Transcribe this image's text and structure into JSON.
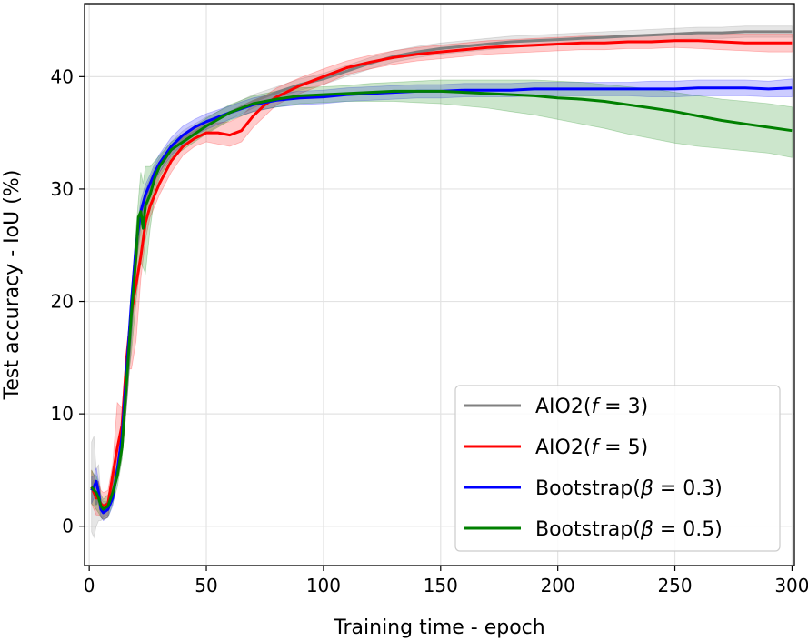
{
  "chart_data": {
    "type": "line",
    "title": "",
    "xlabel": "Training time - epoch",
    "ylabel": "Test accuracy - IoU (%)",
    "xlim": [
      -2,
      301
    ],
    "ylim": [
      -3.5,
      46.5
    ],
    "xticks": [
      0,
      50,
      100,
      150,
      200,
      250,
      300
    ],
    "yticks": [
      0,
      10,
      20,
      30,
      40
    ],
    "grid": true,
    "legend_position": "lower-right",
    "series": [
      {
        "name": "AIO2(f = 3)",
        "legend_prefix": "AIO2(",
        "legend_var": "f",
        "legend_suffix": " = 3)",
        "color": "#808080",
        "x": [
          1,
          2,
          3,
          4,
          5,
          6,
          8,
          10,
          12,
          14,
          16,
          18,
          20,
          22,
          25,
          28,
          30,
          35,
          40,
          50,
          60,
          70,
          80,
          90,
          100,
          110,
          120,
          130,
          140,
          150,
          160,
          170,
          180,
          190,
          200,
          210,
          220,
          230,
          240,
          250,
          260,
          270,
          280,
          290,
          300
        ],
        "y": [
          3.2,
          4.0,
          2.0,
          3.5,
          1.5,
          1.4,
          1.6,
          4.0,
          5.0,
          7.0,
          12.0,
          18.0,
          24.0,
          27.5,
          29.5,
          31.0,
          32.0,
          33.5,
          34.5,
          35.7,
          36.8,
          37.8,
          38.6,
          39.3,
          39.8,
          40.5,
          41.2,
          41.8,
          42.2,
          42.5,
          42.7,
          42.9,
          43.1,
          43.2,
          43.3,
          43.4,
          43.5,
          43.6,
          43.7,
          43.8,
          43.9,
          43.9,
          44.0,
          44.0,
          44.0
        ],
        "lower": [
          -0.5,
          -1.0,
          0.0,
          0.5,
          0.5,
          0.8,
          1.0,
          3.0,
          4.0,
          6.0,
          11.0,
          17.0,
          23.0,
          26.5,
          28.5,
          30.0,
          31.2,
          32.8,
          33.8,
          35.0,
          36.2,
          37.2,
          38.1,
          38.8,
          39.3,
          40.0,
          40.7,
          41.3,
          41.7,
          42.0,
          42.2,
          42.4,
          42.6,
          42.7,
          42.8,
          42.9,
          43.0,
          43.1,
          43.2,
          43.3,
          43.4,
          43.4,
          43.5,
          43.5,
          43.5
        ],
        "upper": [
          7.5,
          8.0,
          5.0,
          5.5,
          2.5,
          2.2,
          2.2,
          5.0,
          6.0,
          8.0,
          13.0,
          19.0,
          25.0,
          28.5,
          30.5,
          32.0,
          32.8,
          34.2,
          35.2,
          36.4,
          37.4,
          38.4,
          39.1,
          39.8,
          40.3,
          41.0,
          41.7,
          42.3,
          42.7,
          43.0,
          43.2,
          43.4,
          43.6,
          43.7,
          43.8,
          43.9,
          44.0,
          44.1,
          44.2,
          44.3,
          44.4,
          44.4,
          44.5,
          44.5,
          44.5
        ]
      },
      {
        "name": "AIO2(f = 5)",
        "legend_prefix": "AIO2(",
        "legend_var": "f",
        "legend_suffix": " = 5)",
        "color": "#ff0000",
        "x": [
          1,
          2,
          3,
          4,
          5,
          6,
          8,
          10,
          12,
          14,
          16,
          18,
          20,
          22,
          24,
          26,
          28,
          30,
          35,
          40,
          45,
          50,
          55,
          60,
          65,
          70,
          75,
          80,
          90,
          100,
          110,
          120,
          130,
          140,
          150,
          160,
          170,
          180,
          190,
          200,
          210,
          220,
          230,
          240,
          250,
          260,
          270,
          280,
          290,
          300
        ],
        "y": [
          3.5,
          3.0,
          2.5,
          2.5,
          2.0,
          1.8,
          2.0,
          4.5,
          7.0,
          9.0,
          15.0,
          19.0,
          21.5,
          24.0,
          27.0,
          28.5,
          29.5,
          30.5,
          32.5,
          33.8,
          34.5,
          35.0,
          35.0,
          34.8,
          35.2,
          36.5,
          37.5,
          38.2,
          39.2,
          40.0,
          40.8,
          41.3,
          41.7,
          42.0,
          42.2,
          42.4,
          42.6,
          42.7,
          42.8,
          42.9,
          43.0,
          43.0,
          43.1,
          43.1,
          43.2,
          43.2,
          43.1,
          43.0,
          43.0,
          43.0
        ],
        "lower": [
          2.0,
          1.5,
          1.0,
          1.0,
          0.8,
          0.6,
          0.8,
          3.5,
          6.0,
          8.0,
          14.0,
          14.0,
          16.5,
          22.0,
          25.5,
          27.5,
          28.5,
          29.5,
          31.5,
          33.0,
          33.8,
          34.2,
          34.0,
          33.8,
          34.2,
          35.5,
          36.5,
          37.5,
          38.5,
          39.3,
          40.2,
          40.7,
          41.1,
          41.4,
          41.6,
          41.8,
          42.0,
          42.1,
          42.2,
          42.3,
          42.4,
          42.4,
          42.5,
          42.5,
          42.6,
          42.5,
          42.4,
          42.3,
          42.2,
          42.2
        ],
        "upper": [
          5.0,
          4.5,
          4.0,
          4.0,
          3.2,
          3.0,
          3.2,
          5.5,
          11.0,
          10.5,
          16.0,
          20.0,
          25.0,
          26.0,
          28.5,
          29.5,
          30.5,
          31.5,
          33.5,
          34.8,
          35.4,
          35.8,
          35.9,
          36.0,
          36.5,
          37.5,
          38.3,
          39.0,
          39.9,
          40.7,
          41.4,
          41.9,
          42.3,
          42.6,
          42.8,
          43.0,
          43.2,
          43.3,
          43.4,
          43.5,
          43.6,
          43.6,
          43.7,
          43.7,
          43.8,
          43.9,
          43.8,
          43.8,
          43.8,
          43.8
        ]
      },
      {
        "name": "Bootstrap(β = 0.3)",
        "legend_prefix": "Bootstrap(",
        "legend_var": "β",
        "legend_suffix": " = 0.3)",
        "color": "#0000ff",
        "x": [
          1,
          2,
          3,
          4,
          5,
          6,
          8,
          10,
          12,
          14,
          16,
          18,
          20,
          22,
          24,
          26,
          28,
          30,
          35,
          40,
          45,
          50,
          60,
          70,
          80,
          90,
          100,
          110,
          120,
          130,
          140,
          150,
          160,
          170,
          180,
          190,
          200,
          210,
          220,
          230,
          240,
          250,
          260,
          270,
          280,
          290,
          300
        ],
        "y": [
          3.2,
          3.5,
          4.0,
          3.0,
          1.5,
          1.2,
          1.5,
          2.5,
          5.0,
          8.0,
          14.0,
          20.0,
          25.0,
          28.0,
          29.5,
          30.5,
          31.5,
          32.3,
          33.8,
          34.8,
          35.5,
          36.0,
          36.8,
          37.5,
          37.9,
          38.1,
          38.2,
          38.4,
          38.5,
          38.6,
          38.7,
          38.7,
          38.8,
          38.8,
          38.8,
          38.9,
          38.9,
          38.9,
          38.9,
          38.9,
          38.9,
          38.9,
          39.0,
          39.0,
          39.0,
          38.9,
          39.0
        ],
        "lower": [
          2.0,
          2.5,
          2.8,
          2.0,
          0.8,
          0.5,
          0.8,
          1.8,
          4.2,
          7.0,
          13.0,
          19.0,
          24.0,
          27.0,
          28.6,
          29.7,
          30.7,
          31.5,
          33.0,
          34.0,
          34.8,
          35.3,
          36.2,
          36.9,
          37.3,
          37.5,
          37.6,
          37.8,
          37.9,
          38.0,
          38.1,
          38.1,
          38.2,
          38.2,
          38.2,
          38.3,
          38.3,
          38.3,
          38.3,
          38.3,
          38.2,
          38.2,
          38.3,
          38.3,
          38.3,
          38.2,
          38.2
        ],
        "upper": [
          4.4,
          4.5,
          5.2,
          4.0,
          2.2,
          1.9,
          2.2,
          3.2,
          5.8,
          9.0,
          15.0,
          21.0,
          26.0,
          29.0,
          30.4,
          31.3,
          32.3,
          33.1,
          34.6,
          35.6,
          36.2,
          36.7,
          37.4,
          38.1,
          38.5,
          38.7,
          38.8,
          39.0,
          39.1,
          39.2,
          39.3,
          39.3,
          39.4,
          39.4,
          39.4,
          39.5,
          39.5,
          39.5,
          39.5,
          39.5,
          39.6,
          39.6,
          39.7,
          39.7,
          39.7,
          39.6,
          39.8
        ]
      },
      {
        "name": "Bootstrap(β = 0.5)",
        "legend_prefix": "Bootstrap(",
        "legend_var": "β",
        "legend_suffix": " = 0.5)",
        "color": "#008000",
        "x": [
          1,
          2,
          3,
          4,
          5,
          6,
          8,
          10,
          12,
          14,
          16,
          18,
          20,
          21,
          22,
          23,
          24,
          26,
          28,
          30,
          35,
          40,
          45,
          50,
          60,
          70,
          80,
          90,
          100,
          110,
          120,
          130,
          140,
          150,
          160,
          170,
          180,
          190,
          200,
          210,
          220,
          230,
          240,
          250,
          260,
          270,
          280,
          290,
          300
        ],
        "y": [
          3.5,
          3.2,
          3.0,
          2.5,
          1.8,
          1.5,
          1.8,
          3.0,
          4.5,
          7.0,
          13.0,
          19.0,
          24.0,
          27.5,
          28.0,
          26.5,
          28.5,
          29.5,
          31.0,
          32.0,
          33.5,
          34.2,
          34.9,
          35.6,
          36.8,
          37.6,
          38.0,
          38.3,
          38.4,
          38.5,
          38.6,
          38.7,
          38.7,
          38.7,
          38.6,
          38.5,
          38.4,
          38.3,
          38.1,
          38.0,
          37.8,
          37.5,
          37.2,
          36.9,
          36.5,
          36.1,
          35.8,
          35.5,
          35.2
        ],
        "lower": [
          2.0,
          1.8,
          1.5,
          1.2,
          0.8,
          0.6,
          0.8,
          2.0,
          3.5,
          6.0,
          12.0,
          15.5,
          20.0,
          22.0,
          23.5,
          23.0,
          22.5,
          26.5,
          29.5,
          31.0,
          32.8,
          33.5,
          34.2,
          34.9,
          36.1,
          36.9,
          37.3,
          37.6,
          37.7,
          37.8,
          37.8,
          37.8,
          37.7,
          37.6,
          37.4,
          37.2,
          36.9,
          36.6,
          36.2,
          35.8,
          35.4,
          34.9,
          34.5,
          34.1,
          33.8,
          33.6,
          33.4,
          33.2,
          32.8
        ],
        "upper": [
          5.0,
          4.6,
          4.5,
          3.8,
          2.8,
          2.4,
          2.8,
          4.0,
          5.5,
          8.0,
          14.0,
          21.0,
          26.5,
          29.0,
          31.5,
          30.5,
          32.0,
          32.0,
          32.5,
          33.0,
          34.2,
          34.9,
          35.6,
          36.3,
          37.5,
          38.3,
          38.7,
          39.0,
          39.1,
          39.2,
          39.4,
          39.5,
          39.6,
          39.7,
          39.7,
          39.7,
          39.7,
          39.7,
          39.6,
          39.5,
          39.3,
          39.1,
          38.9,
          38.6,
          38.3,
          38.0,
          37.8,
          37.6,
          37.3
        ]
      }
    ]
  }
}
